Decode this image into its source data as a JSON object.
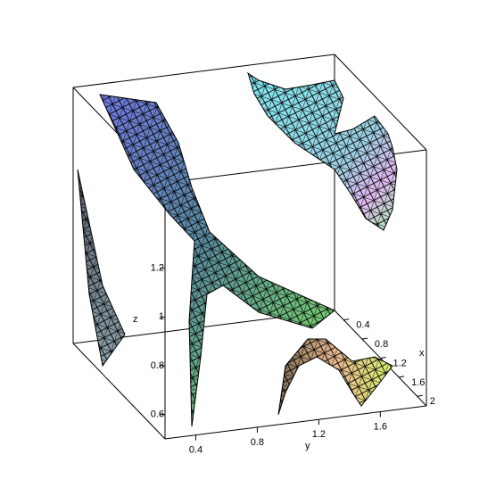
{
  "chart_data": {
    "type": "surface3d",
    "xlabel": "x",
    "ylabel": "y",
    "zlabel": "z",
    "xlim": [
      0.2,
      2.2
    ],
    "ylim": [
      0.2,
      1.9
    ],
    "zlim": [
      0.5,
      1.55
    ],
    "xticks": [
      0.4,
      0.8,
      1.2,
      1.6,
      2
    ],
    "yticks": [
      0.4,
      0.8,
      1.2,
      1.6
    ],
    "zticks": [
      0.6,
      0.8,
      1,
      1.2
    ]
  }
}
